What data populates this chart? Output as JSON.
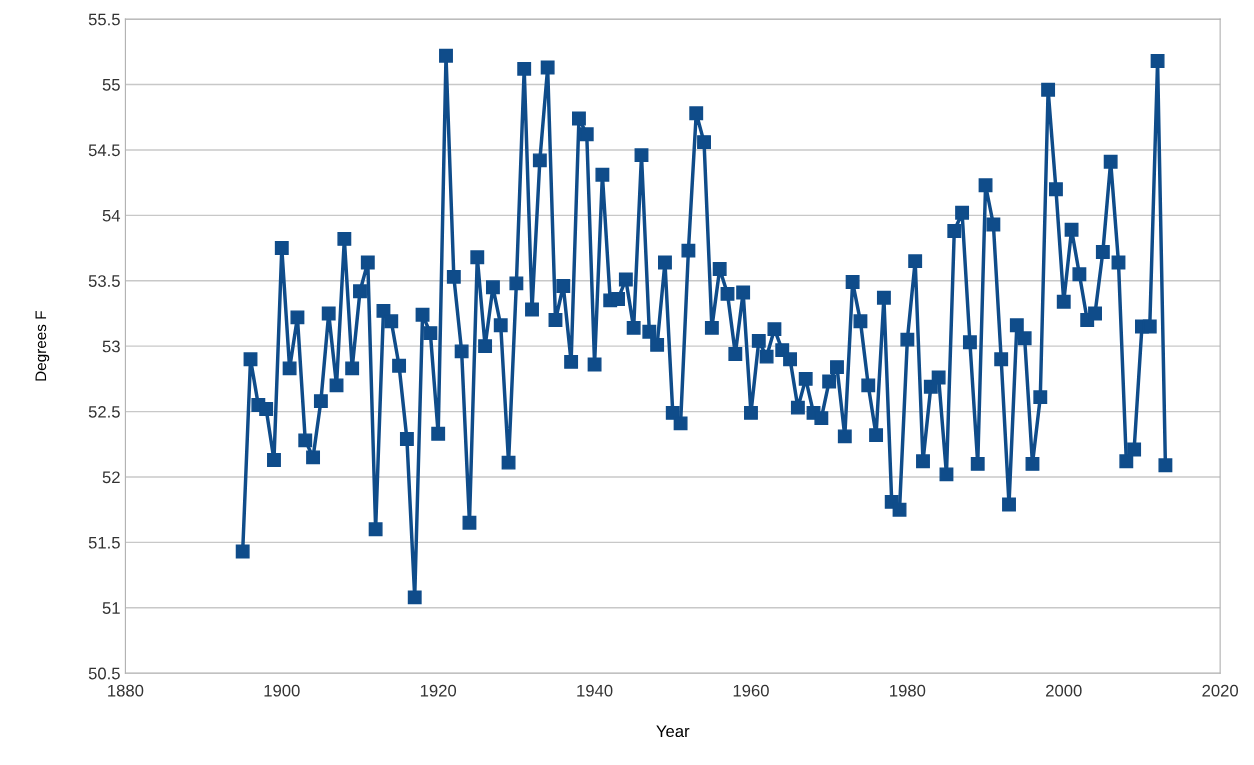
{
  "chart_data": {
    "type": "line",
    "xlabel": "Year",
    "ylabel": "Degrees F",
    "x": [
      1895,
      1896,
      1897,
      1898,
      1899,
      1900,
      1901,
      1902,
      1903,
      1904,
      1905,
      1906,
      1907,
      1908,
      1909,
      1910,
      1911,
      1912,
      1913,
      1914,
      1915,
      1916,
      1917,
      1918,
      1919,
      1920,
      1921,
      1922,
      1923,
      1924,
      1925,
      1926,
      1927,
      1928,
      1929,
      1930,
      1931,
      1932,
      1933,
      1934,
      1935,
      1936,
      1937,
      1938,
      1939,
      1940,
      1941,
      1942,
      1943,
      1944,
      1945,
      1946,
      1947,
      1948,
      1949,
      1950,
      1951,
      1952,
      1953,
      1954,
      1955,
      1956,
      1957,
      1958,
      1959,
      1960,
      1961,
      1962,
      1963,
      1964,
      1965,
      1966,
      1967,
      1968,
      1969,
      1970,
      1971,
      1972,
      1973,
      1974,
      1975,
      1976,
      1977,
      1978,
      1979,
      1980,
      1981,
      1982,
      1983,
      1984,
      1985,
      1986,
      1987,
      1988,
      1989,
      1990,
      1991,
      1992,
      1993,
      1994,
      1995,
      1996,
      1997,
      1998,
      1999,
      2000,
      2001,
      2002,
      2003,
      2004,
      2005,
      2006,
      2007,
      2008,
      2009,
      2010,
      2011,
      2012,
      2013
    ],
    "series": [
      {
        "color": "#0f4c8a",
        "values": [
          51.43,
          52.9,
          52.55,
          52.52,
          52.13,
          53.75,
          52.83,
          53.22,
          52.28,
          52.15,
          52.58,
          53.25,
          52.7,
          53.82,
          52.83,
          53.42,
          53.64,
          51.6,
          53.27,
          53.19,
          52.85,
          52.29,
          51.08,
          53.24,
          53.1,
          52.33,
          55.22,
          53.53,
          52.96,
          51.65,
          53.68,
          53.0,
          53.45,
          53.16,
          52.11,
          53.48,
          55.12,
          53.28,
          54.42,
          55.13,
          53.2,
          53.46,
          52.88,
          54.74,
          54.62,
          52.86,
          54.31,
          53.35,
          53.36,
          53.51,
          53.14,
          54.46,
          53.11,
          53.01,
          53.64,
          52.49,
          52.41,
          53.73,
          54.78,
          54.56,
          53.14,
          53.59,
          53.4,
          52.94,
          53.41,
          52.49,
          53.04,
          52.92,
          53.13,
          52.97,
          52.9,
          52.53,
          52.75,
          52.49,
          52.45,
          52.73,
          52.84,
          52.31,
          53.49,
          53.19,
          52.7,
          52.32,
          53.37,
          51.81,
          51.75,
          53.05,
          53.65,
          52.12,
          52.69,
          52.76,
          52.02,
          53.88,
          54.02,
          53.03,
          52.1,
          54.23,
          53.93,
          52.9,
          51.79,
          53.16,
          53.06,
          52.1,
          52.61,
          54.96,
          54.2,
          53.34,
          53.89,
          53.55,
          53.2,
          53.25,
          53.72,
          54.41,
          53.64,
          52.12,
          52.21,
          53.15,
          53.15,
          55.18,
          52.09
        ]
      }
    ],
    "xlim": [
      1880,
      2020
    ],
    "xticks": [
      1880,
      1900,
      1920,
      1940,
      1960,
      1980,
      2000,
      2020
    ],
    "ylim": [
      50.5,
      55.5
    ],
    "yticks": [
      50.5,
      51,
      51.5,
      52,
      52.5,
      53,
      53.5,
      54,
      54.5,
      55,
      55.5
    ],
    "grid": "y",
    "marker": "square",
    "line_style": "solid"
  }
}
